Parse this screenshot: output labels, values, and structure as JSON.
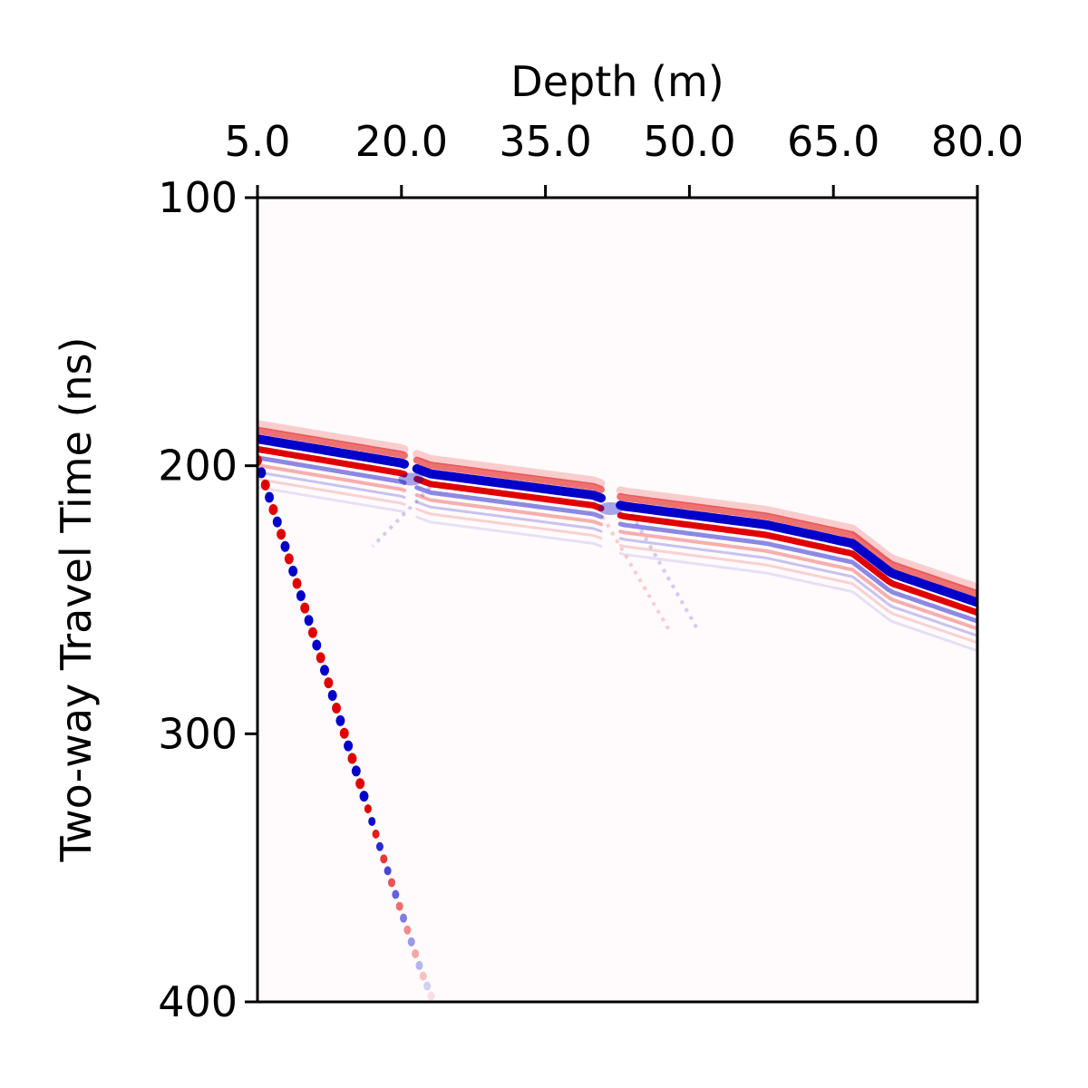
{
  "chart_data": {
    "type": "heatmap",
    "title": "",
    "xlabel": "Depth (m)",
    "ylabel": "Two-way Travel Time (ns)",
    "xlim": [
      5.0,
      80.0
    ],
    "ylim": [
      400,
      100
    ],
    "x_axis_position": "top",
    "y_axis_inverted": true,
    "grid": false,
    "colormap": "bwr (blue-white-red, diverging)",
    "colors": {
      "positive": "#e00000",
      "negative": "#0000c8",
      "zero": "#ffffff",
      "axes": "#000000"
    },
    "xticks": [
      "5.0",
      "20.0",
      "35.0",
      "50.0",
      "65.0",
      "80.0"
    ],
    "xtick_values": [
      5.0,
      20.0,
      35.0,
      50.0,
      65.0,
      80.0
    ],
    "yticks": [
      "100",
      "200",
      "300",
      "400"
    ],
    "ytick_values": [
      100,
      200,
      300,
      400
    ],
    "reflector": {
      "description_points": [
        {
          "depth": 5.0,
          "time": 190
        },
        {
          "depth": 20.0,
          "time": 199
        },
        {
          "depth": 23.0,
          "time": 203
        },
        {
          "depth": 40.0,
          "time": 211
        },
        {
          "depth": 43.0,
          "time": 215
        },
        {
          "depth": 58.0,
          "time": 222
        },
        {
          "depth": 67.0,
          "time": 229
        },
        {
          "depth": 71.0,
          "time": 240
        },
        {
          "depth": 80.0,
          "time": 251
        }
      ]
    },
    "direct_wave": {
      "description_points": [
        {
          "depth": 5.0,
          "time": 198
        },
        {
          "depth": 11.0,
          "time": 265
        },
        {
          "depth": 18.0,
          "time": 345
        },
        {
          "depth": 22.0,
          "time": 388
        }
      ]
    }
  }
}
